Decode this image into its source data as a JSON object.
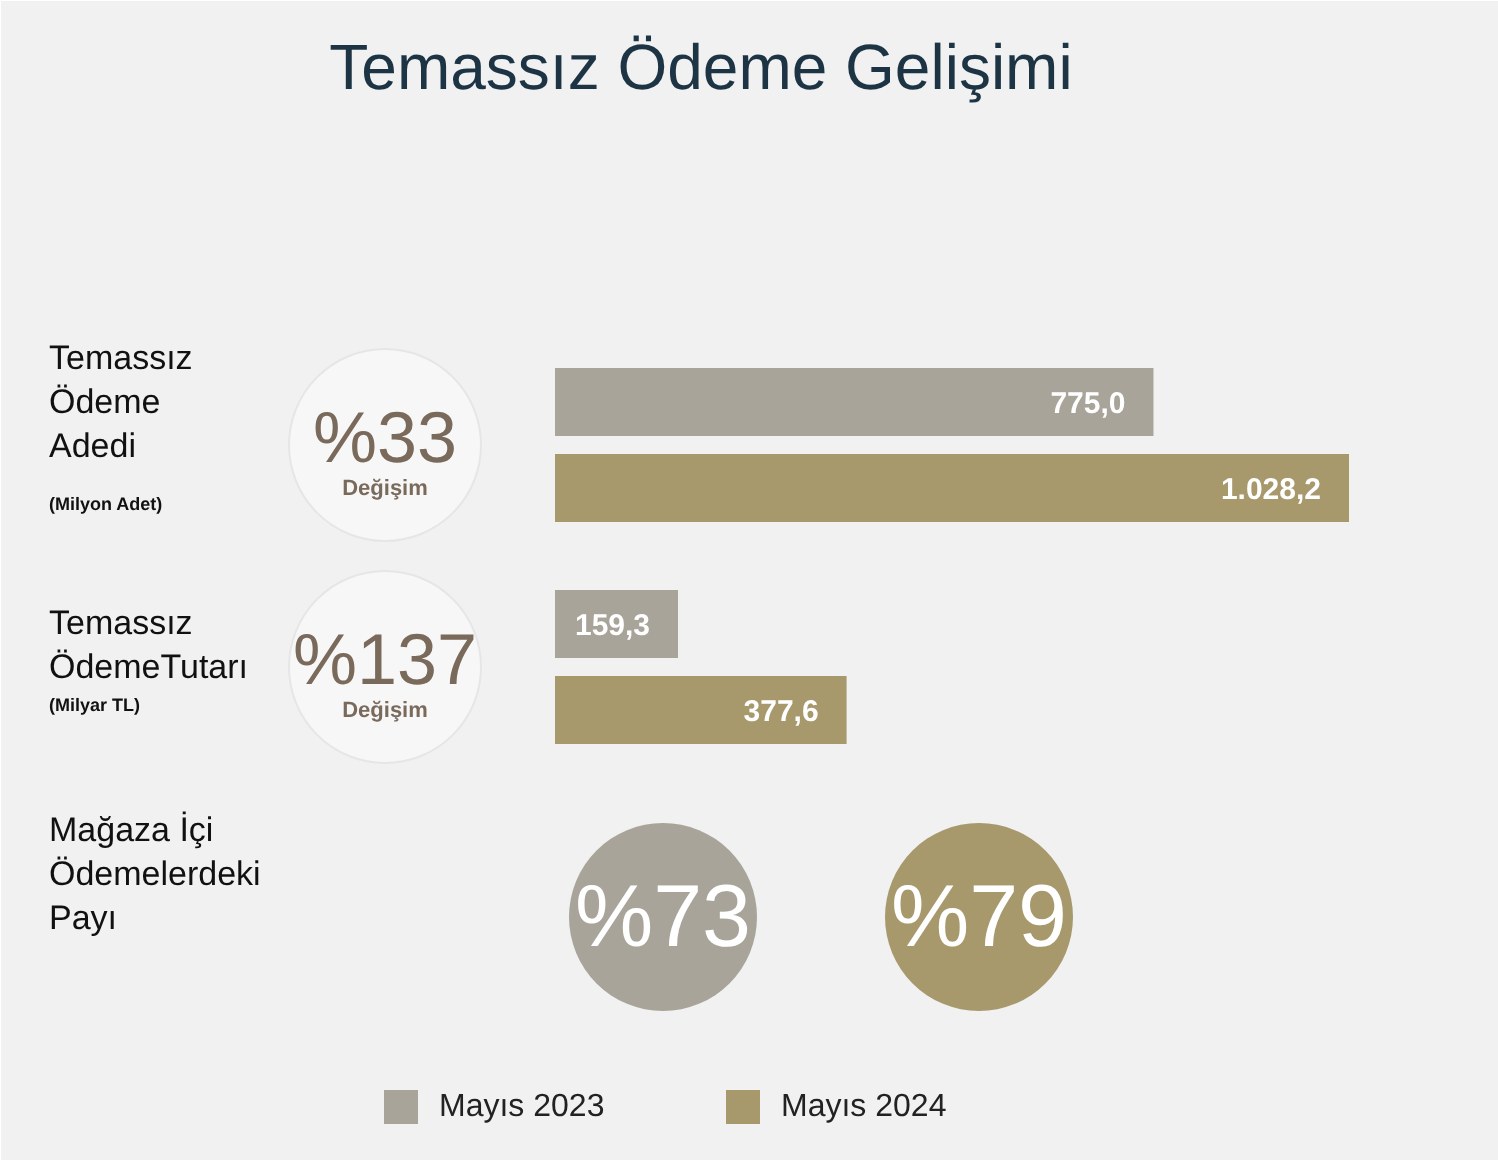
{
  "chart_data": [
    {
      "type": "bar",
      "title": "Temassız Ödeme Gelişimi",
      "orientation": "horizontal",
      "categories": [
        "Temassız\nÖdeme\nAdedi"
      ],
      "subtitle": "(Milyon Adet)",
      "annotations": [
        "%33",
        "Değişim"
      ],
      "series": [
        {
          "color": "#a8a49a",
          "values": [
            775.0
          ],
          "value_labels": [
            "775,0"
          ]
        },
        {
          "color": "#a8996c",
          "values": [
            1028.2
          ],
          "value_labels": [
            "1.028,2"
          ]
        }
      ]
    },
    {
      "type": "bar",
      "orientation": "horizontal",
      "categories": [
        "Temassız\nÖdemeTutarı"
      ],
      "subtitle": "(Milyar TL)",
      "annotations": [
        "%137",
        "Değişim"
      ],
      "series": [
        {
          "color": "#a8a49a",
          "values": [
            159.3
          ],
          "value_labels": [
            "159,3"
          ]
        },
        {
          "color": "#a8996c",
          "values": [
            377.6
          ],
          "value_labels": [
            "377,6"
          ]
        }
      ]
    },
    {
      "type": "other",
      "categories": [
        "Mağaza İçi\nÖdemelerdeki\nPayı"
      ],
      "legend": "bottom",
      "series": [
        {
          "name": "Mayıs 2023",
          "color": "#a8a49a",
          "values": [
            73
          ],
          "value_labels": [
            "%73"
          ]
        },
        {
          "name": "Mayıs 2024",
          "color": "#a8996c",
          "values": [
            79
          ],
          "value_labels": [
            "%79"
          ]
        }
      ]
    }
  ]
}
